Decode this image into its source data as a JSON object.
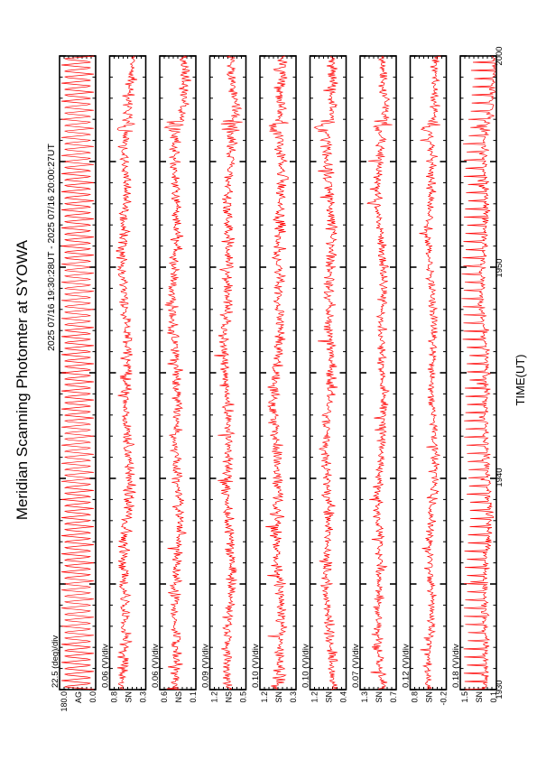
{
  "chart_data": {
    "type": "line",
    "title": "Meridian Scanning Photomter at SYOWA",
    "subtitle": "2025 07/16 19:30:28UT - 2025 07/16 20:00:27UT",
    "xlabel": "TIME(UT)",
    "x_ticks": [
      "1930",
      "1940",
      "1950",
      "2000"
    ],
    "x_range": [
      "19:30",
      "20:00"
    ],
    "line_color": "#ff0000",
    "grid": false,
    "panels": [
      {
        "scale": "22.5 (deg)/div",
        "label": "AG",
        "ytop": "180.0",
        "ybottom": "0.0",
        "kind": "scan"
      },
      {
        "scale": "0.06 (V)/div",
        "label": "SN",
        "ytop": "0.8",
        "ybottom": "0.3",
        "kind": "signal",
        "level": 0.55,
        "amp": 0.22,
        "event": 0.55
      },
      {
        "scale": "0.06 (V)/div",
        "label": "NS",
        "ytop": "0.6",
        "ybottom": "0.1",
        "kind": "signal",
        "level": 0.55,
        "amp": 0.22,
        "event": 0.55
      },
      {
        "scale": "0.09 (V)/div",
        "label": "NS",
        "ytop": "1.2",
        "ybottom": "0.5",
        "kind": "signal",
        "level": 0.5,
        "amp": 0.22,
        "event": 0.6
      },
      {
        "scale": "0.10 (V)/div",
        "label": "SN",
        "ytop": "1.2",
        "ybottom": "0.3",
        "kind": "signal",
        "level": 0.5,
        "amp": 0.25,
        "event": 0.6
      },
      {
        "scale": "0.10 (V)/div",
        "label": "SN",
        "ytop": "1.2",
        "ybottom": "0.4",
        "kind": "signal",
        "level": 0.48,
        "amp": 0.22,
        "event": 0.55
      },
      {
        "scale": "0.07 (V)/div",
        "label": "SN",
        "ytop": "1.3",
        "ybottom": "0.7",
        "kind": "signal",
        "level": 0.42,
        "amp": 0.18,
        "event": 0.45
      },
      {
        "scale": "0.12 (V)/div",
        "label": "SN",
        "ytop": "0.8",
        "ybottom": "-0.2",
        "kind": "signal",
        "level": 0.4,
        "amp": 0.18,
        "event": 0.5
      },
      {
        "scale": "0.18 (V)/div",
        "label": "SN",
        "ytop": "1.5",
        "ybottom": "0.1",
        "kind": "spiky",
        "level": 0.3,
        "amp": 0.15,
        "event": 0.3
      }
    ]
  }
}
